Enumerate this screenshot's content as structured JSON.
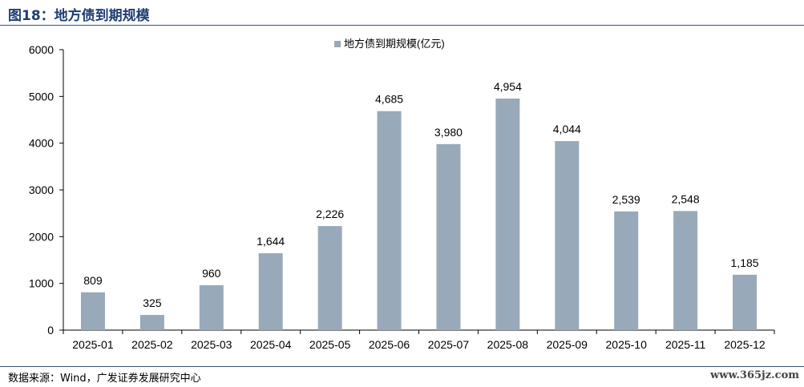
{
  "header": {
    "title": "图18：地方债到期规模"
  },
  "footer": {
    "source": "数据来源：Wind，广发证券发展研究中心",
    "watermark": "www.365jz.com"
  },
  "colors": {
    "bar": "#98aab9",
    "title": "#1f3e73"
  },
  "chart_data": {
    "type": "bar",
    "title": "",
    "xlabel": "",
    "ylabel": "",
    "ylim": [
      0,
      6000
    ],
    "yticks": [
      0,
      1000,
      2000,
      3000,
      4000,
      5000,
      6000
    ],
    "grid": false,
    "legend_position": "top-center",
    "categories": [
      "2025-01",
      "2025-02",
      "2025-03",
      "2025-04",
      "2025-05",
      "2025-06",
      "2025-07",
      "2025-08",
      "2025-09",
      "2025-10",
      "2025-11",
      "2025-12"
    ],
    "series": [
      {
        "name": "地方债到期规模(亿元)",
        "values": [
          809,
          325,
          960,
          1644,
          2226,
          4685,
          3980,
          4954,
          4044,
          2539,
          2548,
          1185
        ],
        "labels": [
          "809",
          "325",
          "960",
          "1,644",
          "2,226",
          "4,685",
          "3,980",
          "4,954",
          "4,044",
          "2,539",
          "2,548",
          "1,185"
        ]
      }
    ]
  }
}
